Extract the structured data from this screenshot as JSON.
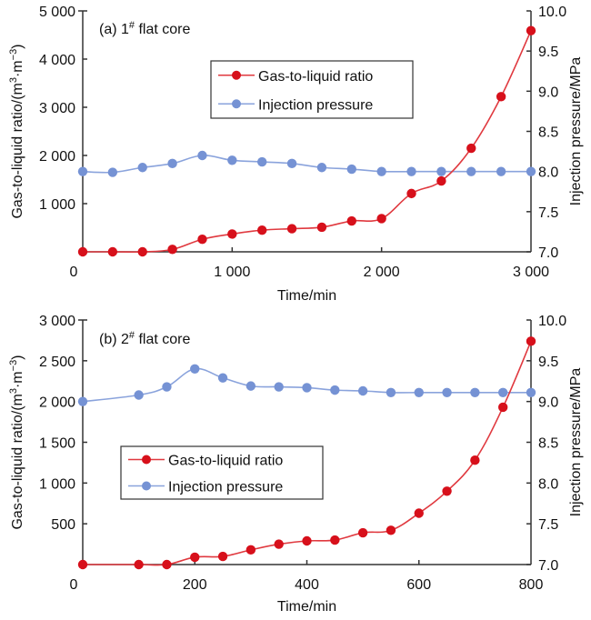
{
  "colors": {
    "gas_liquid": "#d7101b",
    "gas_liquid_line": "#e0393f",
    "injection": "#7592d4",
    "injection_line": "#8aa3dc"
  },
  "chart_data": [
    {
      "type": "line",
      "panel_label": "(a) 1",
      "panel_label_sup": "#",
      "panel_label_suffix": " flat core",
      "xlabel": "Time/min",
      "ylabel_left": "Gas-to-liquid ratio/(m",
      "ylabel_left_sup1": "3",
      "ylabel_left_mid": "·m",
      "ylabel_left_sup2": "−3",
      "ylabel_left_end": ")",
      "ylabel_right": "Injection pressure/MPa",
      "xlim": [
        0,
        3000
      ],
      "ylim_left": [
        0,
        5000
      ],
      "ylim_right": [
        7.0,
        10.0
      ],
      "x_ticks": [
        0,
        1000,
        2000,
        3000
      ],
      "x_tick_labels": [
        "0",
        "1 000",
        "2 000",
        "3 000"
      ],
      "y_left_ticks": [
        1000,
        2000,
        3000,
        4000,
        5000
      ],
      "y_left_tick_labels": [
        "1 000",
        "2 000",
        "3 000",
        "4 000",
        "5 000"
      ],
      "y_right_ticks": [
        7.0,
        7.5,
        8.0,
        8.5,
        9.0,
        9.5,
        10.0
      ],
      "y_right_tick_labels": [
        "7.0",
        "7.5",
        "8.0",
        "8.5",
        "9.0",
        "9.5",
        "10.0"
      ],
      "grid": false,
      "legend_position": "top-center",
      "series": [
        {
          "name": "Gas-to-liquid ratio",
          "axis": "left",
          "color_key": "gas_liquid",
          "x": [
            0,
            200,
            400,
            600,
            800,
            1000,
            1200,
            1400,
            1600,
            1800,
            2000,
            2200,
            2400,
            2600,
            2800,
            3000
          ],
          "values": [
            0,
            0,
            0,
            50,
            260,
            370,
            450,
            480,
            510,
            640,
            690,
            1210,
            1470,
            2150,
            3220,
            4590
          ]
        },
        {
          "name": "Injection pressure",
          "axis": "right",
          "color_key": "injection",
          "x": [
            0,
            200,
            400,
            600,
            800,
            1000,
            1200,
            1400,
            1600,
            1800,
            2000,
            2200,
            2400,
            2600,
            2800,
            3000
          ],
          "values": [
            8.0,
            7.99,
            8.05,
            8.1,
            8.2,
            8.14,
            8.12,
            8.1,
            8.05,
            8.03,
            8.0,
            8.0,
            8.0,
            8.0,
            8.0,
            8.0
          ]
        }
      ]
    },
    {
      "type": "line",
      "panel_label": "(b) 2",
      "panel_label_sup": "#",
      "panel_label_suffix": " flat core",
      "xlabel": "Time/min",
      "ylabel_left": "Gas-to-liquid ratio/(m",
      "ylabel_left_sup1": "3",
      "ylabel_left_mid": "·m",
      "ylabel_left_sup2": "−3",
      "ylabel_left_end": ")",
      "ylabel_right": "Injection pressure/MPa",
      "xlim": [
        0,
        800
      ],
      "ylim_left": [
        0,
        3000
      ],
      "ylim_right": [
        7.0,
        10.0
      ],
      "x_ticks": [
        0,
        200,
        400,
        600,
        800
      ],
      "x_tick_labels": [
        "0",
        "200",
        "400",
        "600",
        "800"
      ],
      "y_left_ticks": [
        500,
        1000,
        1500,
        2000,
        2500,
        3000
      ],
      "y_left_tick_labels": [
        "500",
        "1 000",
        "1 500",
        "2 000",
        "2 500",
        "3 000"
      ],
      "y_right_ticks": [
        7.0,
        7.5,
        8.0,
        8.5,
        9.0,
        9.5,
        10.0
      ],
      "y_right_tick_labels": [
        "7.0",
        "7.5",
        "8.0",
        "8.5",
        "9.0",
        "9.5",
        "10.0"
      ],
      "grid": false,
      "legend_position": "center-left",
      "series": [
        {
          "name": "Gas-to-liquid ratio",
          "axis": "left",
          "color_key": "gas_liquid",
          "x": [
            0,
            100,
            150,
            200,
            250,
            300,
            350,
            400,
            450,
            500,
            550,
            600,
            650,
            700,
            750,
            800
          ],
          "values": [
            0,
            0,
            0,
            90,
            100,
            180,
            250,
            290,
            300,
            390,
            420,
            630,
            900,
            1280,
            1930,
            2740
          ]
        },
        {
          "name": "Injection pressure",
          "axis": "right",
          "color_key": "injection",
          "x": [
            0,
            100,
            150,
            200,
            250,
            300,
            350,
            400,
            450,
            500,
            550,
            600,
            650,
            700,
            750,
            800
          ],
          "values": [
            9.0,
            9.08,
            9.18,
            9.4,
            9.29,
            9.19,
            9.18,
            9.17,
            9.14,
            9.13,
            9.11,
            9.11,
            9.11,
            9.11,
            9.11,
            9.11
          ]
        }
      ]
    }
  ]
}
